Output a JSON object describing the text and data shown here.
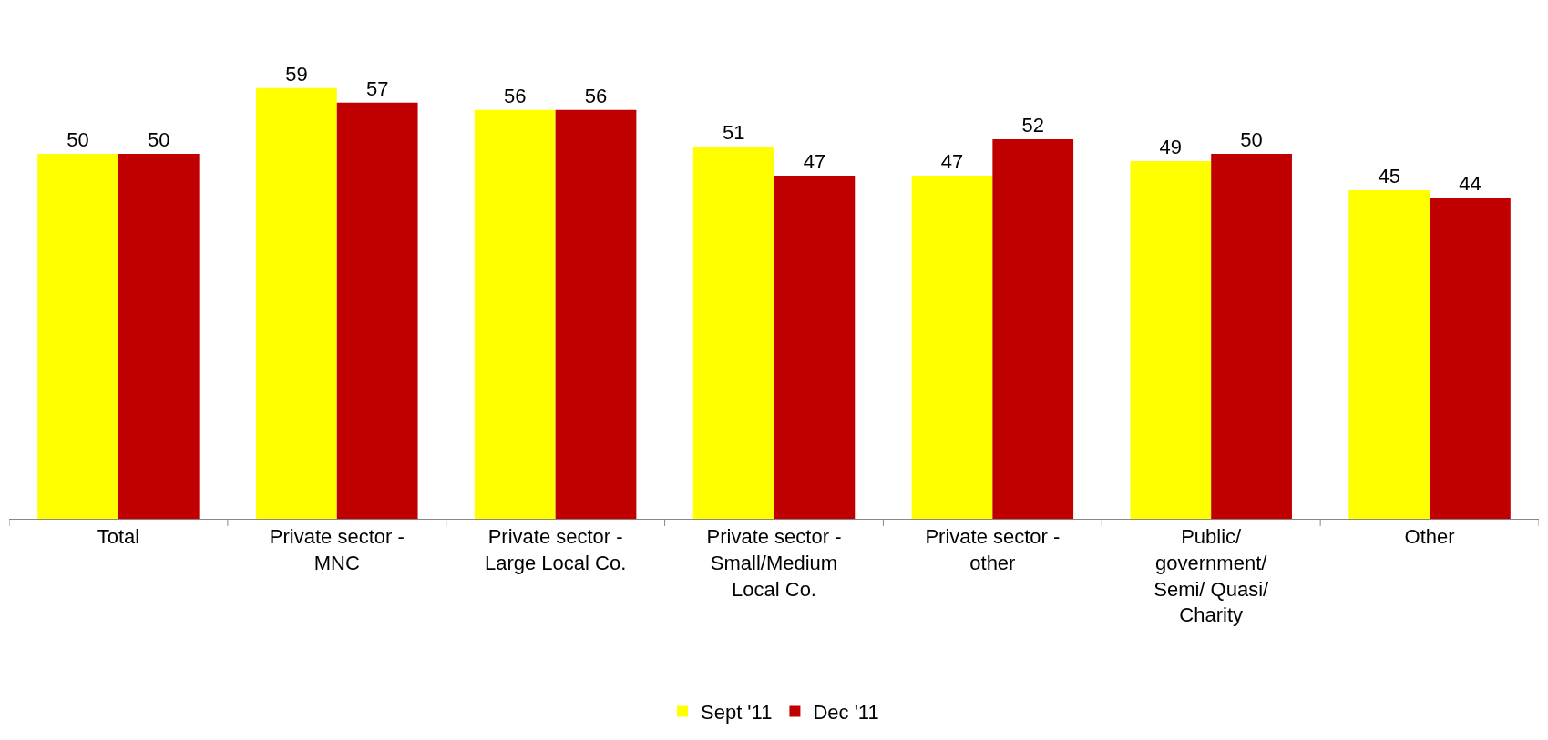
{
  "chart_data": {
    "type": "bar",
    "categories": [
      "Total",
      "Private sector -\nMNC",
      "Private sector -\nLarge Local Co.",
      "Private sector -\nSmall/Medium\nLocal Co.",
      "Private sector -\nother",
      "Public/\ngovernment/\nSemi/ Quasi/\nCharity",
      "Other"
    ],
    "series": [
      {
        "name": "Sept '11",
        "color": "#ffff00",
        "values": [
          50,
          59,
          56,
          51,
          47,
          49,
          45
        ]
      },
      {
        "name": "Dec '11",
        "color": "#c00000",
        "values": [
          50,
          57,
          56,
          47,
          52,
          50,
          44
        ]
      }
    ],
    "data_labels": true,
    "legend": "bottom"
  }
}
